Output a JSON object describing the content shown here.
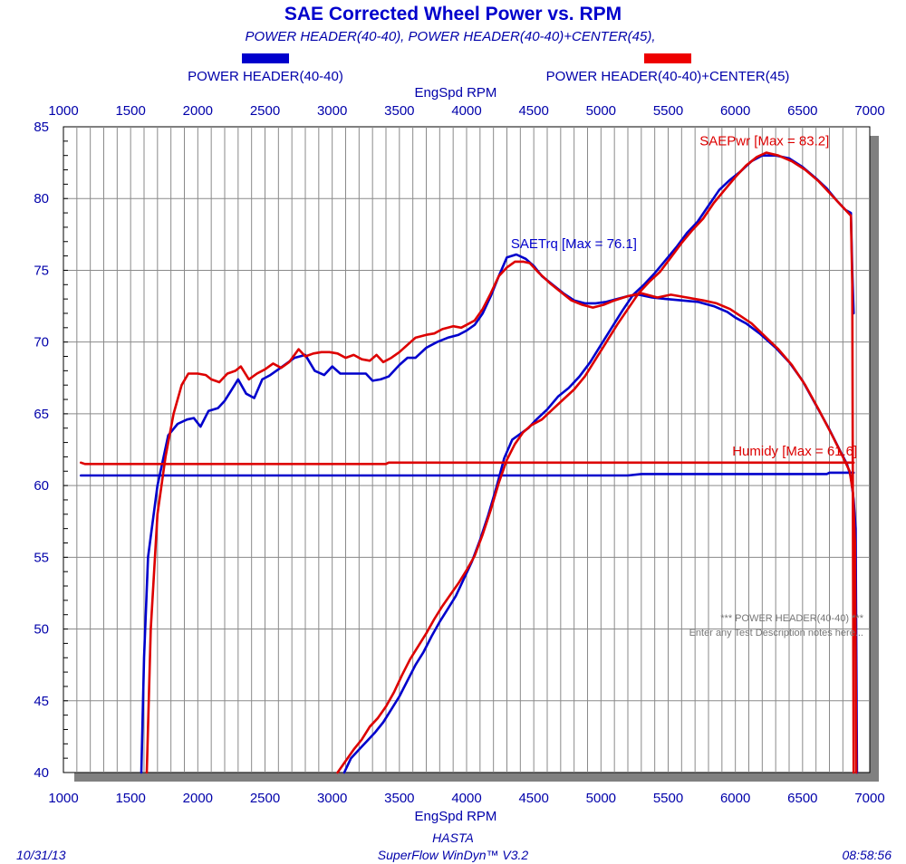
{
  "header": {
    "title": "SAE Corrected Wheel Power vs. RPM",
    "subtitle": "POWER HEADER(40-40), POWER HEADER(40-40)+CENTER(45),"
  },
  "legend": {
    "placement": "top",
    "items": [
      {
        "label": "POWER HEADER(40-40)",
        "color": "#0000cc"
      },
      {
        "label": "POWER HEADER(40-40)+CENTER(45)",
        "color": "#dd0000"
      }
    ]
  },
  "footer": {
    "date": "10/31/13",
    "operator": "HASTA",
    "software": "SuperFlow WinDyn™ V3.2",
    "time": "08:58:56"
  },
  "notes": {
    "line1": "*** POWER HEADER(40-40) ***",
    "line2": "Enter any Test Description notes here..."
  },
  "chart_data": {
    "type": "line",
    "title": "SAE Corrected Wheel Power vs. RPM",
    "xlabel": "EngSpd RPM",
    "ylabel": "",
    "xlim": [
      1000,
      7000
    ],
    "ylim": [
      40,
      85
    ],
    "xticks": [
      1000,
      1500,
      2000,
      2500,
      3000,
      3500,
      4000,
      4500,
      5000,
      5500,
      6000,
      6500,
      7000
    ],
    "yticks": [
      40,
      45,
      50,
      55,
      60,
      65,
      70,
      75,
      80,
      85
    ],
    "grid": true,
    "colors": {
      "run1": "#0000cc",
      "run2": "#dd0000",
      "shadow": "#808080"
    },
    "annotations": [
      {
        "text": "SAETrq [Max = 76.1]",
        "color": "#0000cc",
        "x": 4370,
        "y": 76.1
      },
      {
        "text": "SAEPwr [Max = 83.2]",
        "color": "#dd0000",
        "x": 6230,
        "y": 83.2
      },
      {
        "text": "Humidy [Max = 61.6]",
        "color": "#dd0000",
        "x": 6880,
        "y": 61.6
      }
    ],
    "series": [
      {
        "name": "POWER HEADER(40-40)",
        "quantity": "SAETrq",
        "color": "#0000cc",
        "points": [
          [
            1580,
            40
          ],
          [
            1600,
            48
          ],
          [
            1630,
            55
          ],
          [
            1700,
            60
          ],
          [
            1780,
            63.5
          ],
          [
            1850,
            64.3
          ],
          [
            1920,
            64.6
          ],
          [
            1970,
            64.7
          ],
          [
            2020,
            64.1
          ],
          [
            2080,
            65.2
          ],
          [
            2150,
            65.4
          ],
          [
            2200,
            65.9
          ],
          [
            2260,
            66.8
          ],
          [
            2300,
            67.4
          ],
          [
            2360,
            66.4
          ],
          [
            2420,
            66.1
          ],
          [
            2480,
            67.4
          ],
          [
            2540,
            67.7
          ],
          [
            2600,
            68.1
          ],
          [
            2660,
            68.5
          ],
          [
            2720,
            68.9
          ],
          [
            2800,
            69.1
          ],
          [
            2870,
            68.0
          ],
          [
            2940,
            67.7
          ],
          [
            3000,
            68.3
          ],
          [
            3060,
            67.8
          ],
          [
            3150,
            67.8
          ],
          [
            3250,
            67.8
          ],
          [
            3300,
            67.3
          ],
          [
            3360,
            67.4
          ],
          [
            3420,
            67.6
          ],
          [
            3500,
            68.4
          ],
          [
            3560,
            68.9
          ],
          [
            3620,
            68.9
          ],
          [
            3700,
            69.6
          ],
          [
            3780,
            70.0
          ],
          [
            3860,
            70.3
          ],
          [
            3940,
            70.5
          ],
          [
            4000,
            70.8
          ],
          [
            4060,
            71.2
          ],
          [
            4120,
            72.0
          ],
          [
            4180,
            73.2
          ],
          [
            4240,
            74.6
          ],
          [
            4300,
            75.9
          ],
          [
            4370,
            76.1
          ],
          [
            4440,
            75.8
          ],
          [
            4500,
            75.3
          ],
          [
            4560,
            74.6
          ],
          [
            4640,
            74.0
          ],
          [
            4720,
            73.4
          ],
          [
            4800,
            72.9
          ],
          [
            4880,
            72.7
          ],
          [
            4960,
            72.7
          ],
          [
            5040,
            72.8
          ],
          [
            5120,
            73.0
          ],
          [
            5200,
            73.2
          ],
          [
            5280,
            73.3
          ],
          [
            5380,
            73.1
          ],
          [
            5480,
            73.0
          ],
          [
            5600,
            72.9
          ],
          [
            5720,
            72.8
          ],
          [
            5840,
            72.5
          ],
          [
            5940,
            72.1
          ],
          [
            6000,
            71.7
          ],
          [
            6080,
            71.3
          ],
          [
            6180,
            70.6
          ],
          [
            6300,
            69.6
          ],
          [
            6400,
            68.6
          ],
          [
            6500,
            67.3
          ],
          [
            6600,
            65.6
          ],
          [
            6700,
            63.9
          ],
          [
            6780,
            62.4
          ],
          [
            6830,
            61.5
          ],
          [
            6860,
            60.6
          ],
          [
            6880,
            59.0
          ],
          [
            6895,
            57.0
          ],
          [
            6905,
            40
          ]
        ]
      },
      {
        "name": "POWER HEADER(40-40)+CENTER(45)",
        "quantity": "SAETrq",
        "color": "#dd0000",
        "points": [
          [
            1620,
            40
          ],
          [
            1650,
            50
          ],
          [
            1700,
            58
          ],
          [
            1760,
            62
          ],
          [
            1820,
            65
          ],
          [
            1880,
            67
          ],
          [
            1930,
            67.8
          ],
          [
            2000,
            67.8
          ],
          [
            2060,
            67.7
          ],
          [
            2100,
            67.4
          ],
          [
            2160,
            67.2
          ],
          [
            2220,
            67.8
          ],
          [
            2280,
            68.0
          ],
          [
            2320,
            68.3
          ],
          [
            2380,
            67.4
          ],
          [
            2440,
            67.8
          ],
          [
            2500,
            68.1
          ],
          [
            2560,
            68.5
          ],
          [
            2620,
            68.2
          ],
          [
            2680,
            68.6
          ],
          [
            2750,
            69.5
          ],
          [
            2800,
            69.0
          ],
          [
            2860,
            69.2
          ],
          [
            2920,
            69.3
          ],
          [
            2980,
            69.3
          ],
          [
            3040,
            69.2
          ],
          [
            3100,
            68.9
          ],
          [
            3160,
            69.1
          ],
          [
            3220,
            68.8
          ],
          [
            3280,
            68.7
          ],
          [
            3330,
            69.1
          ],
          [
            3380,
            68.6
          ],
          [
            3440,
            68.9
          ],
          [
            3500,
            69.3
          ],
          [
            3560,
            69.8
          ],
          [
            3620,
            70.3
          ],
          [
            3700,
            70.5
          ],
          [
            3760,
            70.6
          ],
          [
            3820,
            70.9
          ],
          [
            3900,
            71.1
          ],
          [
            3960,
            71.0
          ],
          [
            4000,
            71.2
          ],
          [
            4060,
            71.5
          ],
          [
            4120,
            72.3
          ],
          [
            4180,
            73.4
          ],
          [
            4240,
            74.6
          ],
          [
            4300,
            75.2
          ],
          [
            4360,
            75.6
          ],
          [
            4420,
            75.6
          ],
          [
            4470,
            75.5
          ],
          [
            4540,
            74.8
          ],
          [
            4620,
            74.1
          ],
          [
            4700,
            73.5
          ],
          [
            4780,
            72.9
          ],
          [
            4860,
            72.6
          ],
          [
            4940,
            72.4
          ],
          [
            5020,
            72.6
          ],
          [
            5100,
            72.9
          ],
          [
            5200,
            73.2
          ],
          [
            5300,
            73.4
          ],
          [
            5420,
            73.1
          ],
          [
            5520,
            73.3
          ],
          [
            5640,
            73.1
          ],
          [
            5760,
            72.9
          ],
          [
            5860,
            72.7
          ],
          [
            5960,
            72.3
          ],
          [
            6040,
            71.8
          ],
          [
            6120,
            71.3
          ],
          [
            6220,
            70.4
          ],
          [
            6320,
            69.5
          ],
          [
            6420,
            68.4
          ],
          [
            6520,
            67.0
          ],
          [
            6620,
            65.3
          ],
          [
            6720,
            63.5
          ],
          [
            6800,
            62.0
          ],
          [
            6850,
            61.0
          ],
          [
            6875,
            59.5
          ],
          [
            6890,
            56.0
          ],
          [
            6900,
            40
          ]
        ]
      },
      {
        "name": "POWER HEADER(40-40)",
        "quantity": "SAEPwr",
        "color": "#0000cc",
        "points": [
          [
            3090,
            40
          ],
          [
            3140,
            41.0
          ],
          [
            3200,
            41.6
          ],
          [
            3260,
            42.2
          ],
          [
            3320,
            42.8
          ],
          [
            3380,
            43.5
          ],
          [
            3440,
            44.4
          ],
          [
            3500,
            45.3
          ],
          [
            3560,
            46.4
          ],
          [
            3620,
            47.5
          ],
          [
            3680,
            48.4
          ],
          [
            3740,
            49.5
          ],
          [
            3800,
            50.5
          ],
          [
            3860,
            51.4
          ],
          [
            3920,
            52.3
          ],
          [
            3980,
            53.5
          ],
          [
            4040,
            54.7
          ],
          [
            4100,
            56.2
          ],
          [
            4160,
            57.9
          ],
          [
            4220,
            59.8
          ],
          [
            4280,
            61.9
          ],
          [
            4340,
            63.2
          ],
          [
            4400,
            63.6
          ],
          [
            4460,
            64.0
          ],
          [
            4520,
            64.6
          ],
          [
            4600,
            65.3
          ],
          [
            4680,
            66.2
          ],
          [
            4760,
            66.8
          ],
          [
            4840,
            67.6
          ],
          [
            4920,
            68.6
          ],
          [
            5000,
            69.8
          ],
          [
            5080,
            71.0
          ],
          [
            5160,
            72.2
          ],
          [
            5240,
            73.3
          ],
          [
            5320,
            74.0
          ],
          [
            5400,
            74.8
          ],
          [
            5480,
            75.7
          ],
          [
            5560,
            76.6
          ],
          [
            5640,
            77.6
          ],
          [
            5720,
            78.4
          ],
          [
            5800,
            79.5
          ],
          [
            5880,
            80.6
          ],
          [
            5960,
            81.3
          ],
          [
            6040,
            81.9
          ],
          [
            6120,
            82.6
          ],
          [
            6200,
            83.0
          ],
          [
            6300,
            83.0
          ],
          [
            6400,
            82.8
          ],
          [
            6500,
            82.2
          ],
          [
            6600,
            81.4
          ],
          [
            6680,
            80.7
          ],
          [
            6760,
            79.8
          ],
          [
            6820,
            79.2
          ],
          [
            6860,
            79.0
          ],
          [
            6870,
            75.0
          ],
          [
            6880,
            72.0
          ]
        ]
      },
      {
        "name": "POWER HEADER(40-40)+CENTER(45)",
        "quantity": "SAEPwr",
        "color": "#dd0000",
        "points": [
          [
            3040,
            40
          ],
          [
            3100,
            40.8
          ],
          [
            3160,
            41.6
          ],
          [
            3220,
            42.3
          ],
          [
            3280,
            43.2
          ],
          [
            3340,
            43.8
          ],
          [
            3400,
            44.6
          ],
          [
            3460,
            45.6
          ],
          [
            3520,
            46.8
          ],
          [
            3580,
            47.9
          ],
          [
            3640,
            48.8
          ],
          [
            3700,
            49.7
          ],
          [
            3760,
            50.7
          ],
          [
            3820,
            51.6
          ],
          [
            3880,
            52.4
          ],
          [
            3940,
            53.2
          ],
          [
            4000,
            54.1
          ],
          [
            4060,
            55.1
          ],
          [
            4120,
            56.6
          ],
          [
            4180,
            58.3
          ],
          [
            4240,
            60.2
          ],
          [
            4300,
            61.8
          ],
          [
            4360,
            62.9
          ],
          [
            4420,
            63.7
          ],
          [
            4480,
            64.2
          ],
          [
            4560,
            64.6
          ],
          [
            4640,
            65.3
          ],
          [
            4720,
            66.0
          ],
          [
            4800,
            66.7
          ],
          [
            4880,
            67.6
          ],
          [
            4960,
            68.8
          ],
          [
            5040,
            70.0
          ],
          [
            5120,
            71.2
          ],
          [
            5200,
            72.3
          ],
          [
            5280,
            73.4
          ],
          [
            5360,
            74.2
          ],
          [
            5440,
            74.9
          ],
          [
            5520,
            75.9
          ],
          [
            5600,
            76.9
          ],
          [
            5680,
            77.8
          ],
          [
            5760,
            78.6
          ],
          [
            5840,
            79.7
          ],
          [
            5920,
            80.6
          ],
          [
            6000,
            81.5
          ],
          [
            6080,
            82.3
          ],
          [
            6160,
            82.9
          ],
          [
            6230,
            83.2
          ],
          [
            6320,
            83.0
          ],
          [
            6420,
            82.6
          ],
          [
            6520,
            82.0
          ],
          [
            6620,
            81.2
          ],
          [
            6700,
            80.4
          ],
          [
            6780,
            79.6
          ],
          [
            6840,
            79.0
          ],
          [
            6860,
            78.8
          ],
          [
            6870,
            74.0
          ],
          [
            6880,
            40
          ]
        ]
      },
      {
        "name": "POWER HEADER(40-40)",
        "quantity": "Humidy",
        "color": "#0000cc",
        "points": [
          [
            1130,
            60.7
          ],
          [
            3500,
            60.7
          ],
          [
            5200,
            60.7
          ],
          [
            5300,
            60.8
          ],
          [
            6680,
            60.8
          ],
          [
            6700,
            60.9
          ],
          [
            6880,
            60.9
          ]
        ]
      },
      {
        "name": "POWER HEADER(40-40)+CENTER(45)",
        "quantity": "Humidy",
        "color": "#dd0000",
        "points": [
          [
            1130,
            61.6
          ],
          [
            1160,
            61.5
          ],
          [
            3400,
            61.5
          ],
          [
            3420,
            61.6
          ],
          [
            6880,
            61.6
          ]
        ]
      }
    ]
  }
}
